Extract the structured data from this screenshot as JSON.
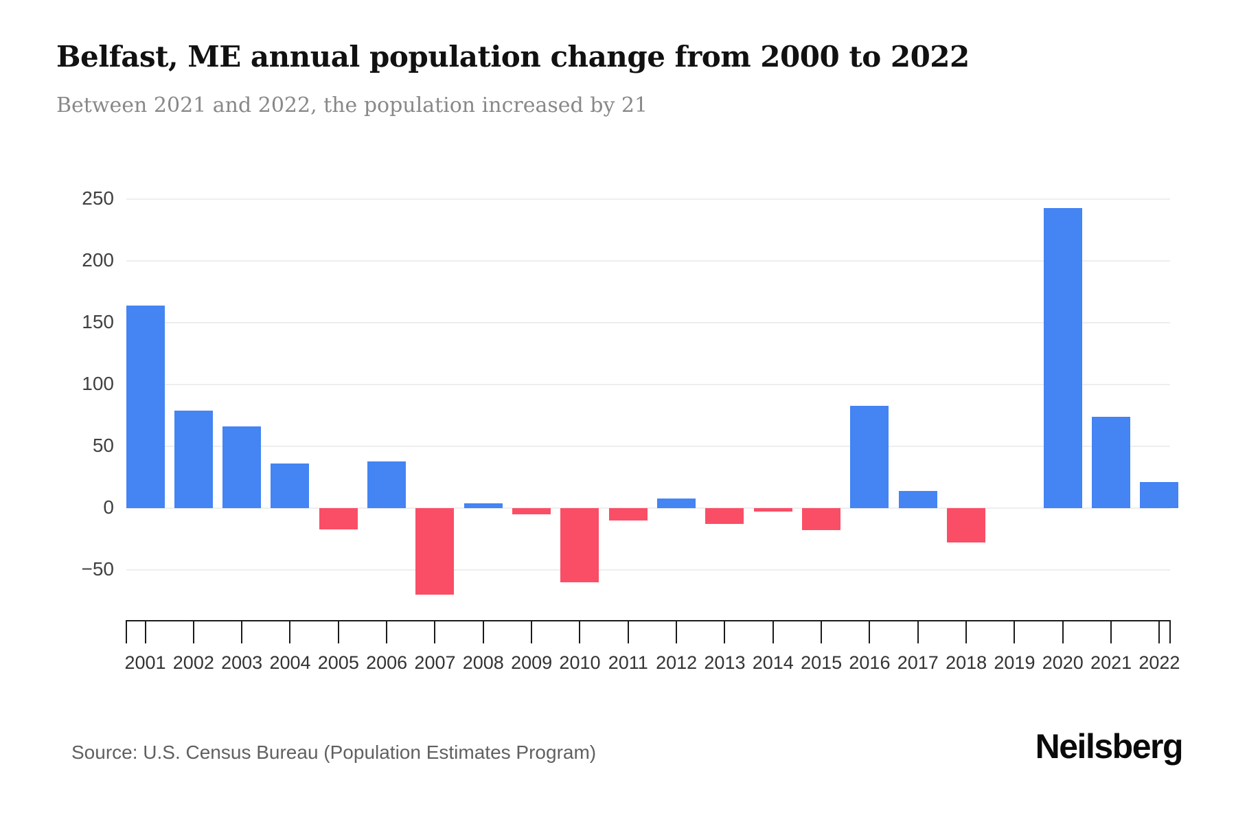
{
  "header": {
    "title": "Belfast, ME annual population change from 2000 to 2022",
    "subtitle": "Between 2021 and 2022, the population increased by 21"
  },
  "footer": {
    "source": "Source: U.S. Census Bureau (Population Estimates Program)",
    "brand": "Neilsberg"
  },
  "colors": {
    "positive_bar": "#4484F3",
    "negative_bar": "#FA4E66",
    "gridline": "#EEEEEE",
    "axis": "#1A1A1A",
    "title_text": "#111111",
    "subtitle_text": "#888888"
  },
  "chart_data": {
    "type": "bar",
    "title": "Belfast, ME annual population change from 2000 to 2022",
    "subtitle": "Between 2021 and 2022, the population increased by 21",
    "categories": [
      "2001",
      "2002",
      "2003",
      "2004",
      "2005",
      "2006",
      "2007",
      "2008",
      "2009",
      "2010",
      "2011",
      "2012",
      "2013",
      "2014",
      "2015",
      "2016",
      "2017",
      "2018",
      "2019",
      "2020",
      "2021",
      "2022"
    ],
    "values": [
      164,
      79,
      66,
      36,
      -17,
      38,
      -70,
      4,
      -5,
      -60,
      -10,
      8,
      -13,
      -3,
      -18,
      83,
      14,
      -28,
      0,
      243,
      74,
      21
    ],
    "yticks": [
      250,
      200,
      150,
      100,
      50,
      0,
      -50
    ],
    "ylim": [
      -85,
      260
    ],
    "xlabel": "",
    "ylabel": "",
    "grid": true,
    "legend": "none",
    "positive_color": "#4484F3",
    "negative_color": "#FA4E66"
  }
}
